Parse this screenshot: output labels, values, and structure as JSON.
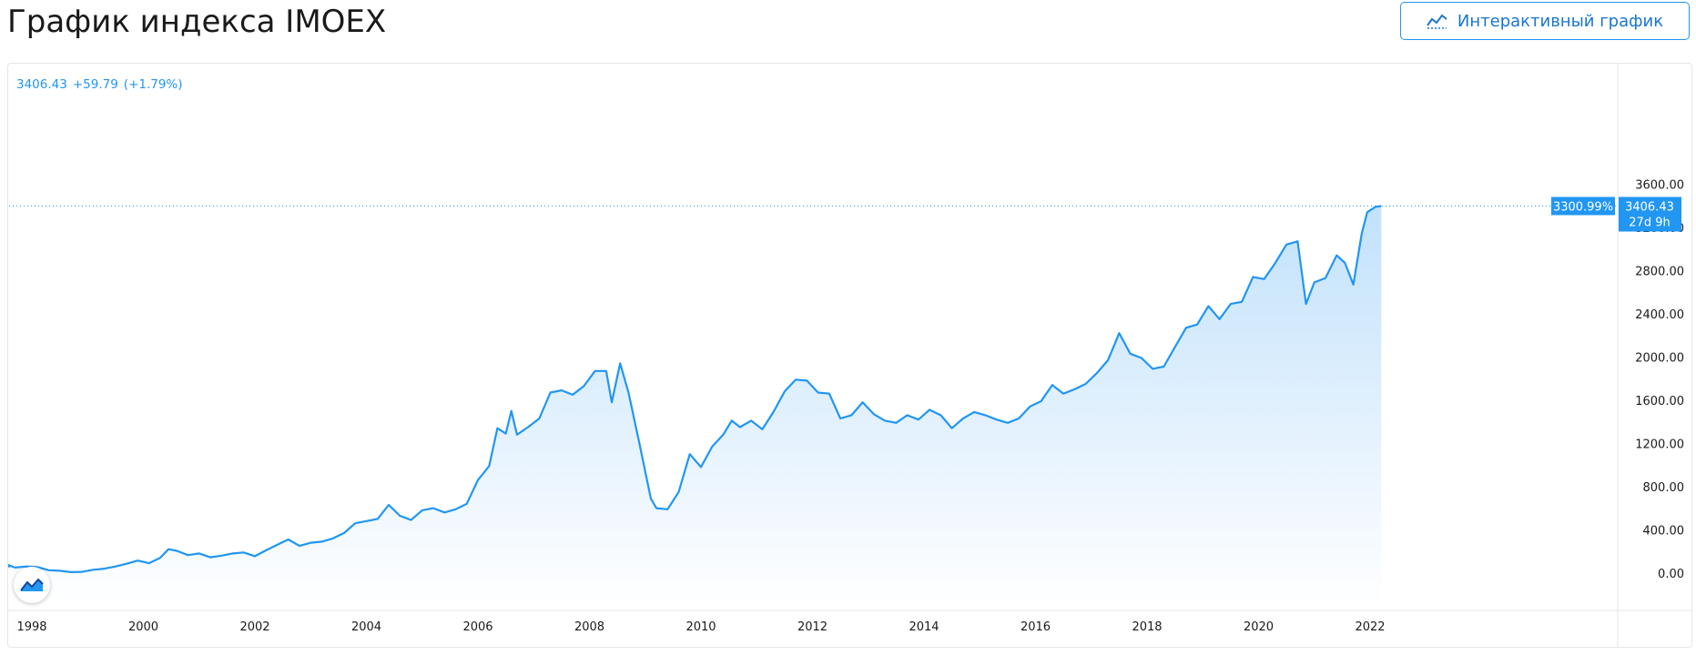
{
  "header": {
    "title": "График индекса IMOEX",
    "interactive_button_label": "Интерактивный график"
  },
  "legend": {
    "last": "3406.43",
    "change": "+59.79",
    "change_pct": "(+1.79%)"
  },
  "last_price": {
    "percent_label": "3300.99%",
    "price_label": "3406.43",
    "countdown_label": "27d 9h"
  },
  "colors": {
    "line": "#2196f3",
    "area_top": "#bbdefb",
    "area_bottom": "#ffffff",
    "label_bg": "#2196f3",
    "axis_text": "#1a1a1a",
    "button_border": "#2196f3"
  },
  "icons": {
    "button_icon": "line-chart-icon",
    "logo": "tradingview-logo-icon"
  },
  "chart_data": {
    "type": "area",
    "title": "",
    "xlabel": "",
    "ylabel": "",
    "ylim": [
      -100,
      3700
    ],
    "y_ticks": [
      "3600.00",
      "3200.00",
      "2800.00",
      "2400.00",
      "2000.00",
      "1600.00",
      "1200.00",
      "800.00",
      "400.00",
      "0.00"
    ],
    "x_ticks": [
      "1998",
      "2000",
      "2002",
      "2004",
      "2006",
      "2008",
      "2010",
      "2012",
      "2014",
      "2016",
      "2018",
      "2020",
      "2022"
    ],
    "grid": false,
    "series": [
      {
        "points": [
          [
            1997.1,
            90
          ],
          [
            1997.3,
            70
          ],
          [
            1997.5,
            80
          ],
          [
            1997.7,
            60
          ],
          [
            1997.9,
            70
          ],
          [
            1998.1,
            65
          ],
          [
            1998.3,
            35
          ],
          [
            1998.5,
            30
          ],
          [
            1998.7,
            18
          ],
          [
            1998.9,
            20
          ],
          [
            1999.1,
            40
          ],
          [
            1999.3,
            50
          ],
          [
            1999.5,
            70
          ],
          [
            1999.7,
            95
          ],
          [
            1999.9,
            125
          ],
          [
            2000.1,
            100
          ],
          [
            2000.3,
            150
          ],
          [
            2000.45,
            230
          ],
          [
            2000.6,
            215
          ],
          [
            2000.8,
            175
          ],
          [
            2001.0,
            190
          ],
          [
            2001.2,
            155
          ],
          [
            2001.4,
            170
          ],
          [
            2001.6,
            190
          ],
          [
            2001.8,
            200
          ],
          [
            2002.0,
            165
          ],
          [
            2002.2,
            220
          ],
          [
            2002.4,
            270
          ],
          [
            2002.6,
            320
          ],
          [
            2002.8,
            260
          ],
          [
            2003.0,
            290
          ],
          [
            2003.2,
            300
          ],
          [
            2003.4,
            330
          ],
          [
            2003.6,
            380
          ],
          [
            2003.8,
            470
          ],
          [
            2004.0,
            490
          ],
          [
            2004.2,
            510
          ],
          [
            2004.4,
            640
          ],
          [
            2004.6,
            540
          ],
          [
            2004.8,
            500
          ],
          [
            2005.0,
            590
          ],
          [
            2005.2,
            610
          ],
          [
            2005.4,
            570
          ],
          [
            2005.6,
            600
          ],
          [
            2005.8,
            650
          ],
          [
            2006.0,
            870
          ],
          [
            2006.2,
            1000
          ],
          [
            2006.35,
            1350
          ],
          [
            2006.5,
            1300
          ],
          [
            2006.6,
            1510
          ],
          [
            2006.7,
            1290
          ],
          [
            2006.9,
            1360
          ],
          [
            2007.1,
            1440
          ],
          [
            2007.3,
            1680
          ],
          [
            2007.5,
            1700
          ],
          [
            2007.7,
            1660
          ],
          [
            2007.9,
            1740
          ],
          [
            2008.1,
            1880
          ],
          [
            2008.3,
            1880
          ],
          [
            2008.4,
            1590
          ],
          [
            2008.55,
            1950
          ],
          [
            2008.7,
            1680
          ],
          [
            2008.9,
            1200
          ],
          [
            2009.1,
            700
          ],
          [
            2009.2,
            610
          ],
          [
            2009.4,
            600
          ],
          [
            2009.6,
            760
          ],
          [
            2009.8,
            1110
          ],
          [
            2010.0,
            990
          ],
          [
            2010.2,
            1180
          ],
          [
            2010.4,
            1290
          ],
          [
            2010.55,
            1420
          ],
          [
            2010.7,
            1360
          ],
          [
            2010.9,
            1420
          ],
          [
            2011.1,
            1340
          ],
          [
            2011.3,
            1500
          ],
          [
            2011.5,
            1690
          ],
          [
            2011.7,
            1800
          ],
          [
            2011.9,
            1790
          ],
          [
            2012.1,
            1680
          ],
          [
            2012.3,
            1670
          ],
          [
            2012.5,
            1440
          ],
          [
            2012.7,
            1470
          ],
          [
            2012.9,
            1590
          ],
          [
            2013.1,
            1480
          ],
          [
            2013.3,
            1420
          ],
          [
            2013.5,
            1400
          ],
          [
            2013.7,
            1470
          ],
          [
            2013.9,
            1430
          ],
          [
            2014.1,
            1520
          ],
          [
            2014.3,
            1470
          ],
          [
            2014.5,
            1350
          ],
          [
            2014.7,
            1440
          ],
          [
            2014.9,
            1500
          ],
          [
            2015.1,
            1470
          ],
          [
            2015.3,
            1430
          ],
          [
            2015.5,
            1400
          ],
          [
            2015.7,
            1440
          ],
          [
            2015.9,
            1550
          ],
          [
            2016.1,
            1600
          ],
          [
            2016.3,
            1750
          ],
          [
            2016.5,
            1670
          ],
          [
            2016.7,
            1710
          ],
          [
            2016.9,
            1760
          ],
          [
            2017.1,
            1860
          ],
          [
            2017.3,
            1980
          ],
          [
            2017.5,
            2230
          ],
          [
            2017.7,
            2040
          ],
          [
            2017.9,
            2000
          ],
          [
            2018.1,
            1900
          ],
          [
            2018.3,
            1920
          ],
          [
            2018.5,
            2100
          ],
          [
            2018.7,
            2280
          ],
          [
            2018.9,
            2310
          ],
          [
            2019.1,
            2480
          ],
          [
            2019.3,
            2360
          ],
          [
            2019.5,
            2500
          ],
          [
            2019.7,
            2520
          ],
          [
            2019.9,
            2750
          ],
          [
            2020.1,
            2730
          ],
          [
            2020.3,
            2880
          ],
          [
            2020.5,
            3050
          ],
          [
            2020.7,
            3080
          ],
          [
            2020.85,
            2500
          ],
          [
            2021.0,
            2700
          ],
          [
            2021.2,
            2740
          ],
          [
            2021.4,
            2950
          ],
          [
            2021.55,
            2880
          ],
          [
            2021.7,
            2680
          ],
          [
            2021.85,
            3150
          ],
          [
            2021.95,
            3350
          ],
          [
            2022.1,
            3400
          ],
          [
            2022.2,
            3406.43
          ]
        ]
      }
    ],
    "last_value": 3406.43
  }
}
